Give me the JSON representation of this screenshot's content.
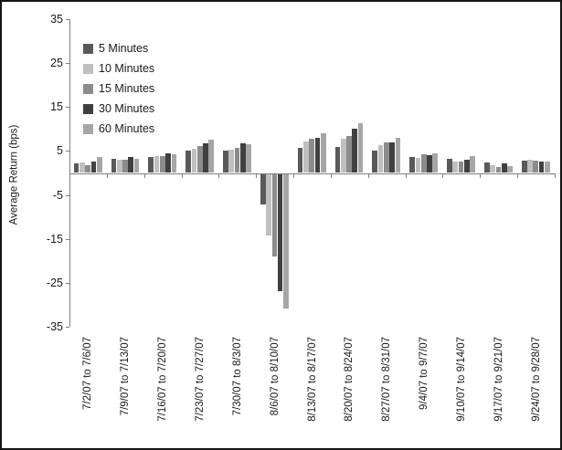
{
  "chart_data": {
    "type": "bar",
    "title": "",
    "xlabel": "",
    "ylabel": "Average Return (bps)",
    "ylim": [
      -35,
      35
    ],
    "y_ticks": [
      35,
      25,
      15,
      5,
      -5,
      -15,
      -25,
      -35
    ],
    "grid": false,
    "legend_position": "top-left-inside",
    "axis_color": "#7f7f7f",
    "categories": [
      "7/2/07 to 7/6/07",
      "7/9/07 to 7/13/07",
      "7/16/07 to 7/20/07",
      "7/23/07 to 7/27/07",
      "7/30/07 to 8/3/07",
      "8/6/07 to 8/10/07",
      "8/13/07 to 8/17/07",
      "8/20/07 to 8/24/07",
      "8/27/07 to 8/31/07",
      "9/4/07 to 9/7/07",
      "9/10/07 to 9/14/07",
      "9/17/07 to 9/21/07",
      "9/24/07 to 9/28/07"
    ],
    "series": [
      {
        "name": "5 Minutes",
        "color": "#595959",
        "values": [
          2.1,
          3.3,
          3.6,
          5.0,
          5.0,
          -7.0,
          5.8,
          6.0,
          5.0,
          3.7,
          3.3,
          2.3,
          2.8
        ]
      },
      {
        "name": "10 Minutes",
        "color": "#bfbfbf",
        "values": [
          2.3,
          3.1,
          3.8,
          5.6,
          5.4,
          -14.0,
          7.1,
          7.7,
          6.3,
          3.5,
          2.7,
          1.8,
          3.0
        ]
      },
      {
        "name": "15 Minutes",
        "color": "#8c8c8c",
        "values": [
          1.7,
          3.1,
          3.8,
          6.2,
          5.8,
          -18.7,
          7.7,
          8.5,
          7.0,
          4.3,
          2.6,
          1.4,
          2.9
        ]
      },
      {
        "name": "30 Minutes",
        "color": "#404040",
        "values": [
          2.7,
          3.7,
          4.5,
          6.7,
          6.7,
          -26.7,
          7.9,
          10.0,
          7.0,
          4.0,
          3.1,
          2.1,
          2.5
        ]
      },
      {
        "name": "60 Minutes",
        "color": "#a6a6a6",
        "values": [
          3.6,
          3.3,
          4.3,
          7.6,
          6.5,
          -30.6,
          9.0,
          11.3,
          8.1,
          4.5,
          3.9,
          1.6,
          2.7
        ]
      }
    ]
  }
}
